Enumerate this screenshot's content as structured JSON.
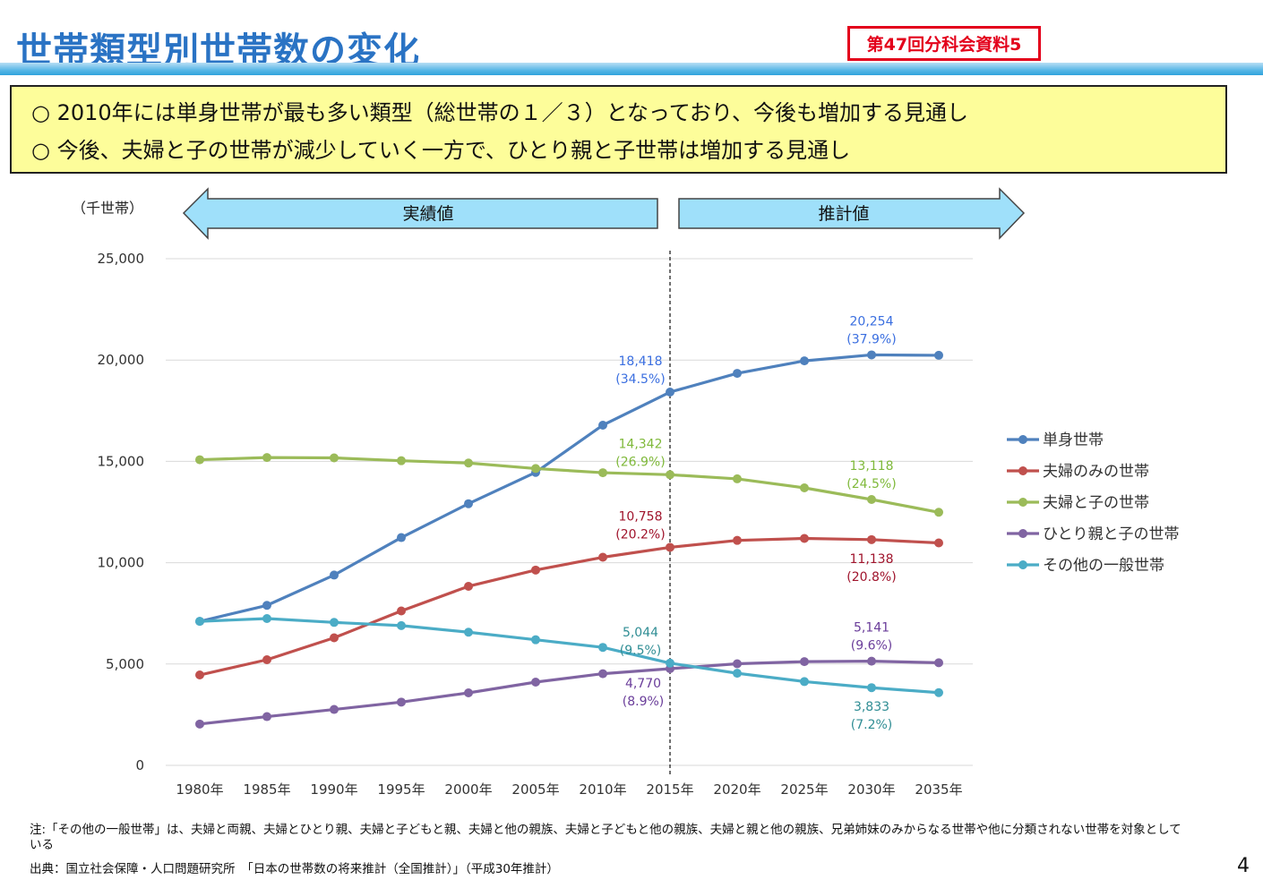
{
  "header": {
    "title": "世帯類型別世帯数の変化",
    "badge": "第47回分科会資料5"
  },
  "summary": {
    "lines": [
      "○ 2010年には単身世帯が最も多い類型（総世帯の１／３）となっており、今後も増加する見通し",
      "○ 今後、夫婦と子の世帯が減少していく一方で、ひとり親と子世帯は増加する見通し"
    ]
  },
  "colors": {
    "title": "#2a73c4",
    "badge": "#e3001b",
    "summary_bg": "#fdfd9a",
    "arrow_fill": "#9fe0fa"
  },
  "chart_data": {
    "type": "line",
    "unit_label": "（千世帯）",
    "actual_label": "実績値",
    "forecast_label": "推計値",
    "categories": [
      "1980年",
      "1985年",
      "1990年",
      "1995年",
      "2000年",
      "2005年",
      "2010年",
      "2015年",
      "2020年",
      "2025年",
      "2030年",
      "2035年"
    ],
    "ylim": [
      0,
      25000
    ],
    "yticks": [
      0,
      5000,
      10000,
      15000,
      20000,
      25000
    ],
    "ytick_labels": [
      "0",
      "5,000",
      "10,000",
      "15,000",
      "20,000",
      "25,000"
    ],
    "grid": true,
    "legend_position": "right",
    "divider_after": "2015年",
    "series": [
      {
        "name": "単身世帯",
        "color": "#4f81bd",
        "values": [
          7105,
          7895,
          9390,
          11239,
          12911,
          14457,
          16785,
          18418,
          19342,
          19960,
          20254,
          20233
        ],
        "label_color": "#3b6fe0",
        "annotations": [
          {
            "index": 7,
            "value": "18,418",
            "pct": "(34.5%)",
            "pos": "above-left"
          },
          {
            "index": 10,
            "value": "20,254",
            "pct": "(37.9%)",
            "pos": "above"
          }
        ]
      },
      {
        "name": "夫婦のみの世帯",
        "color": "#c0504d",
        "values": [
          4460,
          5212,
          6294,
          7619,
          8835,
          9637,
          10269,
          10758,
          11101,
          11197,
          11138,
          10977
        ],
        "label_color": "#a0142c",
        "annotations": [
          {
            "index": 7,
            "value": "10,758",
            "pct": "(20.2%)",
            "pos": "above-left"
          },
          {
            "index": 10,
            "value": "11,138",
            "pct": "(20.8%)",
            "pos": "below"
          }
        ]
      },
      {
        "name": "夫婦と子の世帯",
        "color": "#9bbb59",
        "values": [
          15081,
          15189,
          15172,
          15032,
          14919,
          14646,
          14440,
          14342,
          14138,
          13693,
          13118,
          12488
        ],
        "label_color": "#7fb93a",
        "annotations": [
          {
            "index": 7,
            "value": "14,342",
            "pct": "(26.9%)",
            "pos": "above-left"
          },
          {
            "index": 10,
            "value": "13,118",
            "pct": "(24.5%)",
            "pos": "above"
          }
        ]
      },
      {
        "name": "ひとり親と子の世帯",
        "color": "#8064a2",
        "values": [
          2040,
          2406,
          2758,
          3121,
          3578,
          4108,
          4523,
          4770,
          5013,
          5118,
          5141,
          5064
        ],
        "label_color": "#6a3d9a",
        "annotations": [
          {
            "index": 7,
            "value": "4,770",
            "pct": "(8.9%)",
            "pos": "below-left"
          },
          {
            "index": 10,
            "value": "5,141",
            "pct": "(9.6%)",
            "pos": "above"
          }
        ]
      },
      {
        "name": "その他の一般世帯",
        "color": "#4bacc6",
        "values": [
          7107,
          7245,
          7054,
          6897,
          6570,
          6199,
          5822,
          5044,
          4544,
          4134,
          3833,
          3588
        ],
        "label_color": "#2f8d94",
        "annotations": [
          {
            "index": 7,
            "value": "5,044",
            "pct": "(9.5%)",
            "pos": "above-left"
          },
          {
            "index": 10,
            "value": "3,833",
            "pct": "(7.2%)",
            "pos": "below"
          }
        ]
      }
    ]
  },
  "footer": {
    "note": "注:「その他の一般世帯」は、夫婦と両親、夫婦とひとり親、夫婦と子どもと親、夫婦と他の親族、夫婦と子どもと他の親族、夫婦と親と他の親族、兄弟姉妹のみからなる世帯や他に分類されない世帯を対象としている",
    "source": "出典：国立社会保障・人口問題研究所　「日本の世帯数の将来推計（全国推計）」（平成30年推計）",
    "page": "4"
  }
}
